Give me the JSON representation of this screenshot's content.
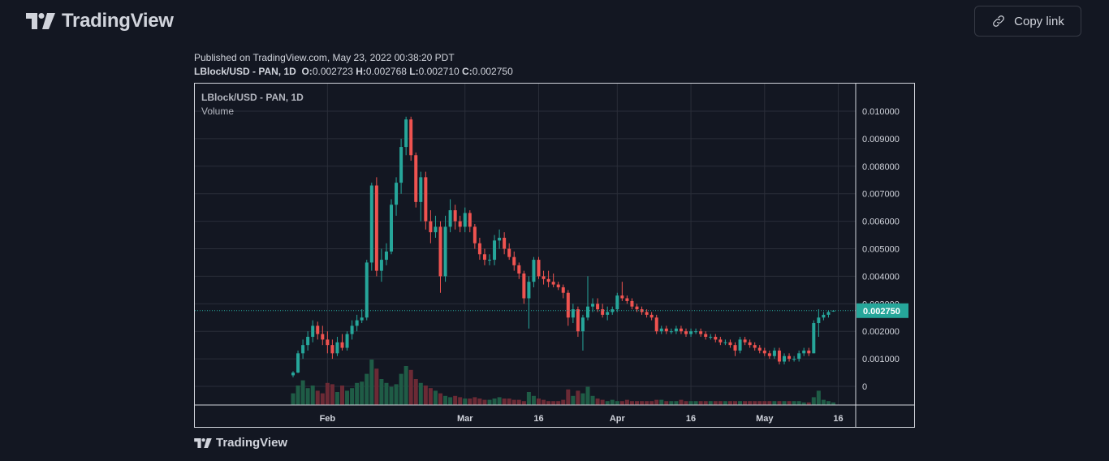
{
  "header": {
    "brand": "TradingView",
    "copy_label": "Copy link",
    "logo_icon": "tradingview-logo-icon",
    "copy_icon": "link-icon"
  },
  "info": {
    "published": "Published on TradingView.com, May 23, 2022 00:38:20 PDT",
    "symbol": "LBlock/USD - PAN, 1D",
    "o_label": "O:",
    "o": "0.002723",
    "h_label": "H:",
    "h": "0.002768",
    "l_label": "L:",
    "l": "0.002710",
    "c_label": "C:",
    "c": "0.002750"
  },
  "legend": {
    "symbol": "LBlock/USD - PAN, 1D",
    "volume": "Volume"
  },
  "footer": {
    "brand": "TradingView"
  },
  "colors": {
    "background": "#131722",
    "grid": "#2a2e39",
    "up": "#26a69a",
    "down": "#ef5350",
    "vol_up": "#1f5c46",
    "vol_down": "#6b2a35",
    "axis_text": "#d1d4dc",
    "last_price_bg": "#26a69a"
  },
  "chart_data": {
    "type": "candlestick",
    "interval": "1D",
    "ylim": [
      0,
      0.0105
    ],
    "y_ticks": [
      "0.010000",
      "0.009000",
      "0.008000",
      "0.007000",
      "0.006000",
      "0.005000",
      "0.004000",
      "0.003000",
      "0.002000",
      "0.001000",
      "0"
    ],
    "x_ticks": [
      {
        "label": "Feb",
        "day": 7
      },
      {
        "label": "Mar",
        "day": 35
      },
      {
        "label": "16",
        "day": 50
      },
      {
        "label": "Apr",
        "day": 66
      },
      {
        "label": "16",
        "day": 81
      },
      {
        "label": "May",
        "day": 96
      },
      {
        "label": "16",
        "day": 111
      }
    ],
    "last_price": "0.002750",
    "grid": true,
    "candles_ohlc": [
      [
        0.0004,
        0.00055,
        0.00033,
        0.0005
      ],
      [
        0.0005,
        0.0013,
        0.00048,
        0.0012
      ],
      [
        0.0012,
        0.0017,
        0.001,
        0.0015
      ],
      [
        0.0015,
        0.002,
        0.0013,
        0.0018
      ],
      [
        0.0018,
        0.0024,
        0.0016,
        0.0022
      ],
      [
        0.0022,
        0.00235,
        0.0017,
        0.0019
      ],
      [
        0.0019,
        0.0022,
        0.0015,
        0.0017
      ],
      [
        0.0017,
        0.002,
        0.0012,
        0.0015
      ],
      [
        0.0015,
        0.0017,
        0.001,
        0.0012
      ],
      [
        0.0012,
        0.0018,
        0.0011,
        0.0016
      ],
      [
        0.0016,
        0.0019,
        0.0013,
        0.0014
      ],
      [
        0.0014,
        0.002,
        0.0013,
        0.0019
      ],
      [
        0.0019,
        0.0024,
        0.0017,
        0.0022
      ],
      [
        0.0022,
        0.0026,
        0.002,
        0.0024
      ],
      [
        0.0024,
        0.0028,
        0.0023,
        0.0025
      ],
      [
        0.0025,
        0.0046,
        0.0024,
        0.0045
      ],
      [
        0.0045,
        0.0074,
        0.0042,
        0.0073
      ],
      [
        0.0073,
        0.0076,
        0.004,
        0.0042
      ],
      [
        0.0042,
        0.005,
        0.0038,
        0.0046
      ],
      [
        0.0046,
        0.0052,
        0.0044,
        0.0049
      ],
      [
        0.0049,
        0.0068,
        0.0048,
        0.0066
      ],
      [
        0.0066,
        0.0076,
        0.0062,
        0.0074
      ],
      [
        0.0074,
        0.009,
        0.007,
        0.0087
      ],
      [
        0.0087,
        0.0098,
        0.0084,
        0.0097
      ],
      [
        0.0097,
        0.0098,
        0.0082,
        0.0084
      ],
      [
        0.0084,
        0.0085,
        0.0065,
        0.0067
      ],
      [
        0.0067,
        0.0078,
        0.006,
        0.0076
      ],
      [
        0.0076,
        0.0078,
        0.0057,
        0.006
      ],
      [
        0.006,
        0.0064,
        0.0052,
        0.0056
      ],
      [
        0.0056,
        0.0062,
        0.0054,
        0.0058
      ],
      [
        0.0058,
        0.006,
        0.0034,
        0.004
      ],
      [
        0.004,
        0.0062,
        0.0038,
        0.0058
      ],
      [
        0.0058,
        0.0068,
        0.0056,
        0.0064
      ],
      [
        0.0064,
        0.0066,
        0.0057,
        0.006
      ],
      [
        0.006,
        0.0062,
        0.0056,
        0.0058
      ],
      [
        0.0058,
        0.0065,
        0.0056,
        0.0063
      ],
      [
        0.0063,
        0.0064,
        0.0056,
        0.0058
      ],
      [
        0.0058,
        0.0059,
        0.005,
        0.0052
      ],
      [
        0.0052,
        0.0054,
        0.0046,
        0.0048
      ],
      [
        0.0048,
        0.005,
        0.0044,
        0.0046
      ],
      [
        0.0046,
        0.0048,
        0.0044,
        0.0046
      ],
      [
        0.0046,
        0.0055,
        0.0044,
        0.0053
      ],
      [
        0.0053,
        0.0057,
        0.005,
        0.0054
      ],
      [
        0.0054,
        0.0056,
        0.0048,
        0.005
      ],
      [
        0.005,
        0.0052,
        0.0046,
        0.0047
      ],
      [
        0.0047,
        0.0049,
        0.0042,
        0.0044
      ],
      [
        0.0044,
        0.0045,
        0.0039,
        0.0041
      ],
      [
        0.0041,
        0.0042,
        0.003,
        0.0032
      ],
      [
        0.0032,
        0.004,
        0.0021,
        0.0038
      ],
      [
        0.0038,
        0.0047,
        0.0036,
        0.0046
      ],
      [
        0.0046,
        0.0047,
        0.0039,
        0.004
      ],
      [
        0.004,
        0.0042,
        0.0037,
        0.0039
      ],
      [
        0.0039,
        0.0042,
        0.0036,
        0.0038
      ],
      [
        0.0038,
        0.0041,
        0.0036,
        0.0037
      ],
      [
        0.0037,
        0.0038,
        0.0035,
        0.0036
      ],
      [
        0.0036,
        0.0037,
        0.0032,
        0.0034
      ],
      [
        0.0034,
        0.0035,
        0.0022,
        0.0025
      ],
      [
        0.0025,
        0.003,
        0.0023,
        0.0028
      ],
      [
        0.0028,
        0.0029,
        0.0018,
        0.002
      ],
      [
        0.002,
        0.0026,
        0.0013,
        0.0025
      ],
      [
        0.0025,
        0.004,
        0.0024,
        0.0029
      ],
      [
        0.0029,
        0.0032,
        0.0027,
        0.003
      ],
      [
        0.003,
        0.0032,
        0.0027,
        0.0028
      ],
      [
        0.0028,
        0.003,
        0.0025,
        0.0026
      ],
      [
        0.0026,
        0.0029,
        0.0024,
        0.0027
      ],
      [
        0.0027,
        0.0029,
        0.0026,
        0.0028
      ],
      [
        0.0028,
        0.0034,
        0.0027,
        0.0033
      ],
      [
        0.0033,
        0.0038,
        0.0031,
        0.0032
      ],
      [
        0.0032,
        0.0033,
        0.003,
        0.0031
      ],
      [
        0.0031,
        0.0032,
        0.0028,
        0.0029
      ],
      [
        0.0029,
        0.003,
        0.0027,
        0.0028
      ],
      [
        0.0028,
        0.0029,
        0.0026,
        0.0027
      ],
      [
        0.0027,
        0.0028,
        0.0025,
        0.0026
      ],
      [
        0.0026,
        0.0027,
        0.0024,
        0.0025
      ],
      [
        0.0025,
        0.0026,
        0.0019,
        0.002
      ],
      [
        0.002,
        0.0022,
        0.0019,
        0.0021
      ],
      [
        0.0021,
        0.0022,
        0.0019,
        0.002
      ],
      [
        0.002,
        0.0021,
        0.0019,
        0.002
      ],
      [
        0.002,
        0.0022,
        0.0019,
        0.0021
      ],
      [
        0.0021,
        0.0022,
        0.0019,
        0.002
      ],
      [
        0.002,
        0.0021,
        0.0018,
        0.0019
      ],
      [
        0.0019,
        0.0021,
        0.0018,
        0.002
      ],
      [
        0.002,
        0.0021,
        0.0019,
        0.002
      ],
      [
        0.002,
        0.0021,
        0.0018,
        0.0019
      ],
      [
        0.0019,
        0.002,
        0.0017,
        0.0018
      ],
      [
        0.0018,
        0.0019,
        0.0017,
        0.0018
      ],
      [
        0.0018,
        0.0019,
        0.0016,
        0.0017
      ],
      [
        0.0017,
        0.0018,
        0.0015,
        0.0016
      ],
      [
        0.0016,
        0.0017,
        0.0015,
        0.0016
      ],
      [
        0.0016,
        0.0017,
        0.0014,
        0.0015
      ],
      [
        0.0015,
        0.0016,
        0.0011,
        0.0013
      ],
      [
        0.0013,
        0.0018,
        0.0012,
        0.0017
      ],
      [
        0.0017,
        0.0018,
        0.0015,
        0.0016
      ],
      [
        0.0016,
        0.0017,
        0.0014,
        0.0015
      ],
      [
        0.0015,
        0.0016,
        0.0013,
        0.0014
      ],
      [
        0.0014,
        0.0015,
        0.0012,
        0.0013
      ],
      [
        0.0013,
        0.0014,
        0.0011,
        0.0012
      ],
      [
        0.0012,
        0.0013,
        0.001,
        0.0011
      ],
      [
        0.0011,
        0.0014,
        0.001,
        0.0013
      ],
      [
        0.0013,
        0.0014,
        0.0008,
        0.0009
      ],
      [
        0.0009,
        0.0012,
        0.0008,
        0.0011
      ],
      [
        0.0011,
        0.0012,
        0.0009,
        0.001
      ],
      [
        0.001,
        0.0011,
        0.0009,
        0.001
      ],
      [
        0.001,
        0.0013,
        0.0009,
        0.0012
      ],
      [
        0.0012,
        0.0014,
        0.0011,
        0.0013
      ],
      [
        0.0013,
        0.0014,
        0.0011,
        0.0012
      ],
      [
        0.0012,
        0.0024,
        0.0012,
        0.0023
      ],
      [
        0.0023,
        0.0028,
        0.0018,
        0.0025
      ],
      [
        0.0025,
        0.0027,
        0.0024,
        0.0026
      ],
      [
        0.0026,
        0.00275,
        0.0025,
        0.0027
      ],
      [
        0.002723,
        0.002768,
        0.00271,
        0.00275
      ]
    ],
    "volume": [
      18,
      30,
      38,
      26,
      30,
      22,
      18,
      34,
      32,
      20,
      30,
      22,
      26,
      34,
      36,
      48,
      70,
      56,
      40,
      34,
      28,
      32,
      48,
      60,
      54,
      40,
      34,
      30,
      26,
      22,
      18,
      14,
      12,
      14,
      12,
      10,
      10,
      12,
      10,
      8,
      8,
      10,
      12,
      10,
      10,
      8,
      8,
      6,
      20,
      14,
      10,
      8,
      6,
      6,
      6,
      8,
      24,
      14,
      22,
      18,
      28,
      14,
      10,
      8,
      6,
      8,
      6,
      6,
      8,
      6,
      6,
      6,
      6,
      6,
      8,
      8,
      6,
      6,
      6,
      8,
      6,
      6,
      6,
      6,
      6,
      6,
      6,
      6,
      6,
      6,
      6,
      6,
      6,
      6,
      6,
      6,
      6,
      6,
      6,
      6,
      6,
      6,
      6,
      6,
      4,
      4,
      12,
      22,
      8,
      6,
      4
    ]
  }
}
